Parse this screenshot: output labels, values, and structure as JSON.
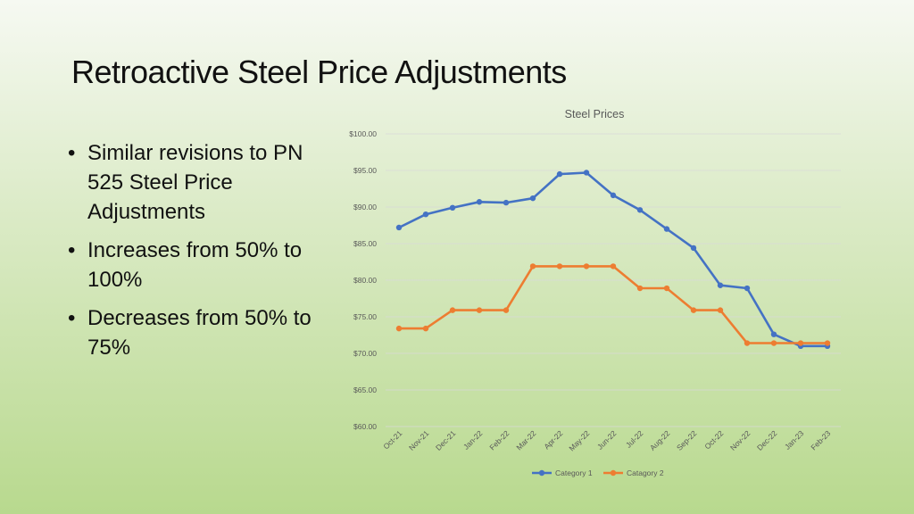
{
  "slide": {
    "title": "Retroactive Steel Price Adjustments",
    "bullets": [
      "Similar revisions to PN 525 Steel Price Adjustments",
      "Increases from 50% to 100%",
      "Decreases from 50% to 75%"
    ]
  },
  "chart_data": {
    "type": "line",
    "title": "Steel Prices",
    "xlabel": "",
    "ylabel": "",
    "categories": [
      "Oct-21",
      "Nov-21",
      "Dec-21",
      "Jan-22",
      "Feb-22",
      "Mar-22",
      "Apr-22",
      "May-22",
      "Jun-22",
      "Jul-22",
      "Aug-22",
      "Sep-22",
      "Oct-22",
      "Nov-22",
      "Dec-22",
      "Jan-23",
      "Feb-23"
    ],
    "ylim": [
      60,
      100
    ],
    "yticks": [
      "$60.00",
      "$65.00",
      "$70.00",
      "$75.00",
      "$80.00",
      "$85.00",
      "$90.00",
      "$95.00",
      "$100.00"
    ],
    "grid": true,
    "legend_position": "bottom",
    "series": [
      {
        "name": "Category 1",
        "color": "#4472c4",
        "values": [
          87.2,
          89.0,
          89.9,
          90.7,
          90.6,
          91.2,
          94.5,
          94.7,
          91.6,
          89.6,
          87.0,
          84.4,
          79.3,
          78.9,
          72.6,
          71.0,
          71.0
        ]
      },
      {
        "name": "Catagory 2",
        "color": "#ed7d31",
        "values": [
          73.4,
          73.4,
          75.9,
          75.9,
          75.9,
          81.9,
          81.9,
          81.9,
          81.9,
          78.9,
          78.9,
          75.9,
          75.9,
          71.4,
          71.4,
          71.4,
          71.4
        ]
      }
    ]
  }
}
